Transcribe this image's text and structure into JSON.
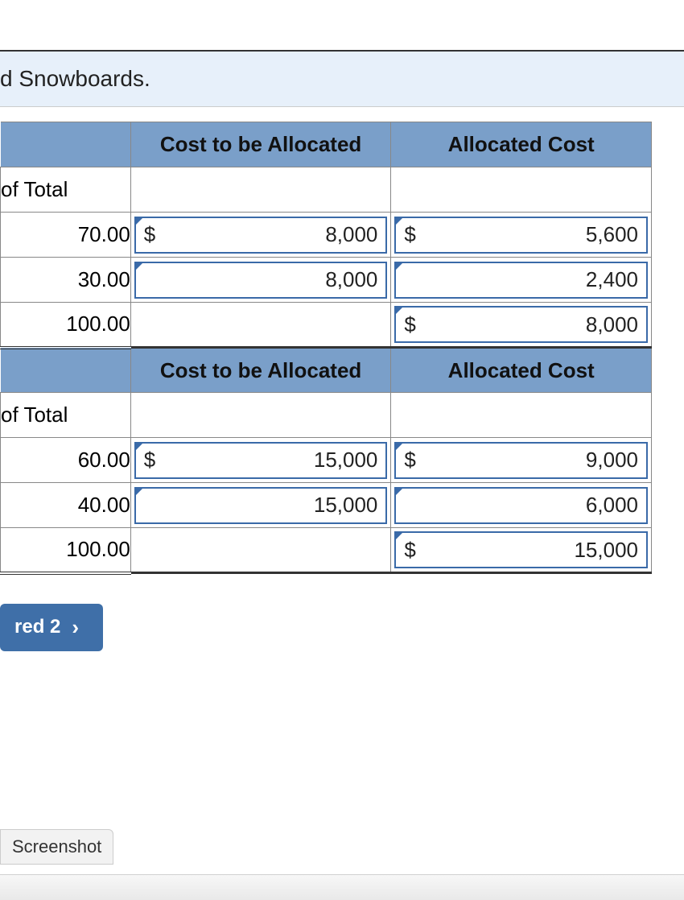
{
  "banner": {
    "text": "d Snowboards."
  },
  "headers": {
    "cost": "Cost to be Allocated",
    "allocated": "Allocated Cost",
    "ofTotal": "of Total"
  },
  "colors": {
    "header_bg": "#7a9fc9",
    "banner_bg": "#e7f0fa",
    "field_border": "#3a6aa8",
    "button_bg": "#3f6fa8"
  },
  "section1": {
    "rows": [
      {
        "pct": "70.00",
        "cost_dollar": "$",
        "cost": "8,000",
        "alloc_dollar": "$",
        "alloc": "5,600"
      },
      {
        "pct": "30.00",
        "cost_dollar": "",
        "cost": "8,000",
        "alloc_dollar": "",
        "alloc": "2,400"
      }
    ],
    "total": {
      "pct": "100.00",
      "alloc_dollar": "$",
      "alloc": "8,000"
    }
  },
  "section2": {
    "rows": [
      {
        "pct": "60.00",
        "cost_dollar": "$",
        "cost": "15,000",
        "alloc_dollar": "$",
        "alloc": "9,000"
      },
      {
        "pct": "40.00",
        "cost_dollar": "",
        "cost": "15,000",
        "alloc_dollar": "",
        "alloc": "6,000"
      }
    ],
    "total": {
      "pct": "100.00",
      "alloc_dollar": "$",
      "alloc": "15,000"
    }
  },
  "button": {
    "label": "red 2"
  },
  "chip": {
    "label": "Screenshot"
  }
}
